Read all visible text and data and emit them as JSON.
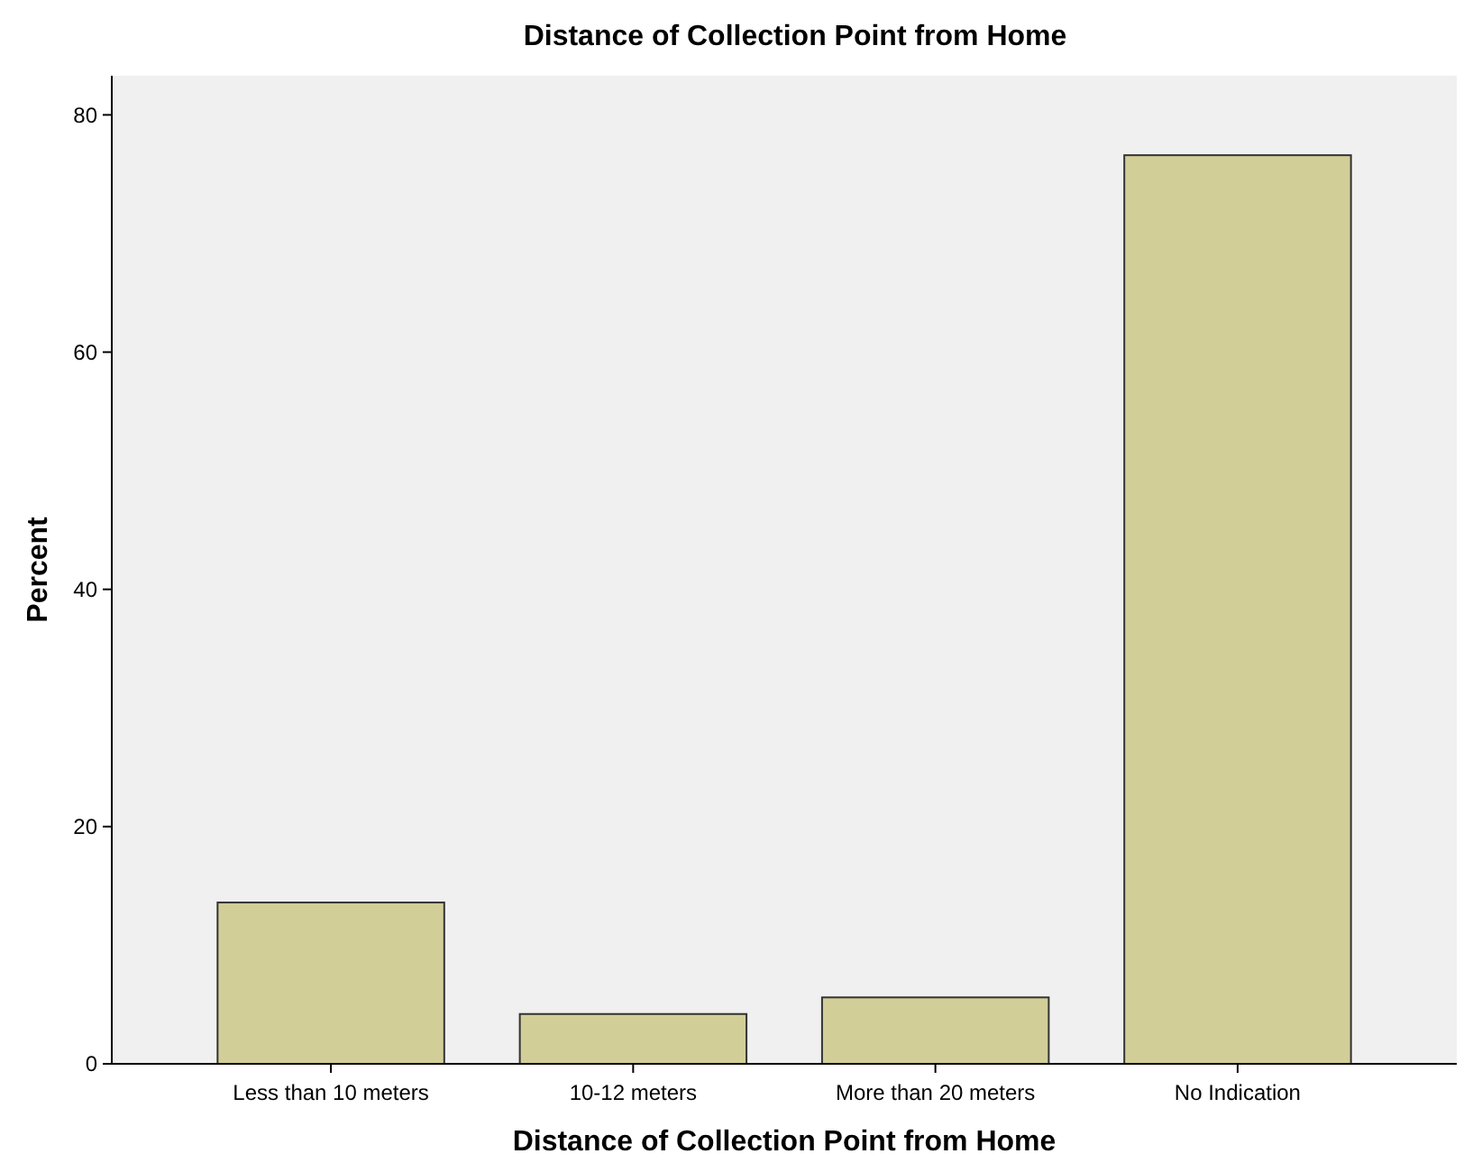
{
  "chart_data": {
    "type": "bar",
    "title": "Distance of Collection Point from Home",
    "xlabel": "Distance of Collection Point from Home",
    "ylabel": "Percent",
    "categories": [
      "Less than 10 meters",
      "10-12 meters",
      "More than 20 meters",
      "No Indication"
    ],
    "values": [
      13.6,
      4.2,
      5.6,
      76.6
    ],
    "color": "#d2ce98",
    "ylim": [
      0,
      83.3
    ],
    "yticks": [
      0,
      20,
      40,
      60,
      80
    ],
    "grid": false
  }
}
